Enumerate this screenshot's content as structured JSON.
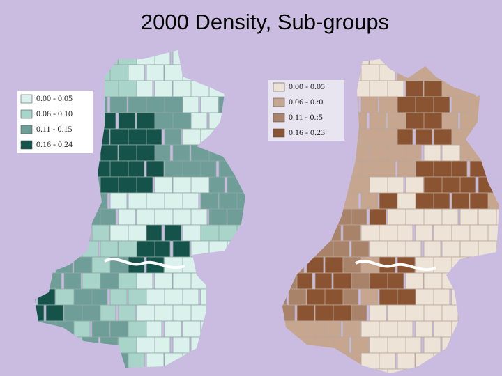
{
  "title": "2000 Density, Sub-groups",
  "maps": [
    {
      "legend": [
        {
          "label": "0.00 - 0.05",
          "color": "#daf1ec"
        },
        {
          "label": "0.06 - 0.10",
          "color": "#a9d4ca"
        },
        {
          "label": "0.11 - 0.15",
          "color": "#6e9e97"
        },
        {
          "label": "0.16 - 0.24",
          "color": "#14524a"
        }
      ]
    },
    {
      "legend": [
        {
          "label": "0.00 - 0.05",
          "color": "#eee3d7"
        },
        {
          "label": "0.06 - 0.:0",
          "color": "#c6a68f"
        },
        {
          "label": "0.11 - 0.:5",
          "color": "#a9826a"
        },
        {
          "label": "0.16 - 0.23",
          "color": "#8a5432"
        }
      ]
    }
  ]
}
